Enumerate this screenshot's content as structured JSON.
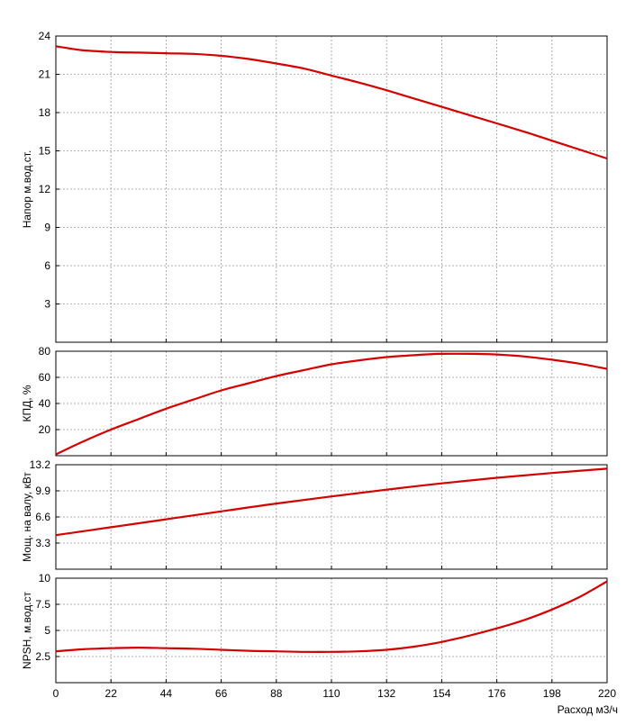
{
  "colors": {
    "curve": "#d40000",
    "grid": "#999999",
    "axis": "#000000",
    "background": "#ffffff"
  },
  "chart_data": [
    {
      "type": "line",
      "ylabel": "Напор м.вод.ст.",
      "ylim": [
        0,
        24
      ],
      "yticks": [
        "3",
        "6",
        "9",
        "12",
        "15",
        "18",
        "21",
        "24"
      ],
      "grid": true,
      "series": [
        {
          "x": [
            0,
            10,
            22,
            33,
            44,
            55,
            66,
            77,
            88,
            99,
            110,
            121,
            132,
            143,
            154,
            165,
            176,
            187,
            198,
            209,
            220
          ],
          "values": [
            23.2,
            22.9,
            22.75,
            22.7,
            22.65,
            22.6,
            22.45,
            22.2,
            21.85,
            21.45,
            20.9,
            20.35,
            19.75,
            19.1,
            18.45,
            17.8,
            17.15,
            16.5,
            15.8,
            15.1,
            14.4
          ]
        }
      ]
    },
    {
      "type": "line",
      "ylabel": "КПД, %",
      "ylim": [
        0,
        80
      ],
      "yticks": [
        "20",
        "40",
        "60",
        "80"
      ],
      "grid": true,
      "series": [
        {
          "x": [
            0,
            11,
            22,
            33,
            44,
            55,
            66,
            77,
            88,
            99,
            110,
            121,
            132,
            143,
            154,
            165,
            176,
            187,
            198,
            209,
            220
          ],
          "values": [
            1,
            11,
            20,
            28,
            36,
            43,
            50,
            55.5,
            61,
            65.5,
            70,
            73,
            75.5,
            77,
            78,
            78,
            77.5,
            76,
            73.5,
            70.5,
            66.5
          ]
        }
      ]
    },
    {
      "type": "line",
      "ylabel": "Мощ. на валу, кВт",
      "ylim": [
        0,
        13.2
      ],
      "yticks": [
        "3.3",
        "6.6",
        "9.9",
        "13.2"
      ],
      "grid": true,
      "series": [
        {
          "x": [
            0,
            22,
            44,
            66,
            88,
            110,
            132,
            154,
            176,
            198,
            220
          ],
          "values": [
            4.3,
            5.3,
            6.3,
            7.3,
            8.3,
            9.2,
            10.05,
            10.85,
            11.55,
            12.15,
            12.7
          ]
        }
      ]
    },
    {
      "type": "line",
      "xlabel": "Расход м3/ч",
      "ylabel": "NPSH, м.вод.ст",
      "ylim": [
        0,
        10
      ],
      "yticks": [
        "2.5",
        "5",
        "7.5",
        "10"
      ],
      "x_ticks": [
        "0",
        "22",
        "44",
        "66",
        "88",
        "110",
        "132",
        "154",
        "176",
        "198",
        "220"
      ],
      "xlim": [
        0,
        220
      ],
      "grid": true,
      "series": [
        {
          "x": [
            0,
            11,
            22,
            33,
            44,
            55,
            66,
            77,
            88,
            99,
            110,
            121,
            132,
            143,
            154,
            165,
            176,
            187,
            198,
            209,
            220
          ],
          "values": [
            3.0,
            3.2,
            3.3,
            3.35,
            3.3,
            3.25,
            3.15,
            3.05,
            3.0,
            2.95,
            2.95,
            3.0,
            3.15,
            3.45,
            3.9,
            4.5,
            5.2,
            6.0,
            7.0,
            8.2,
            9.7
          ]
        }
      ]
    }
  ]
}
